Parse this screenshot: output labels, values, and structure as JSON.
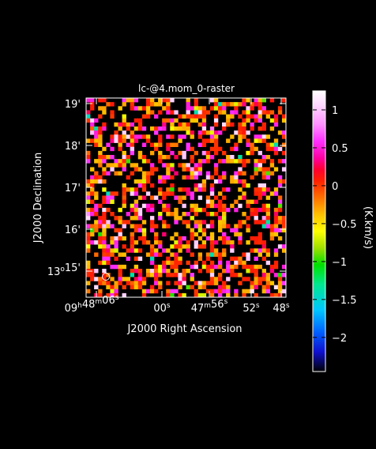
{
  "chart_data": {
    "type": "heatmap",
    "title": "lc-@4.mom_0-raster",
    "xlabel": "J2000 Right Ascension",
    "ylabel": "J2000 Declination",
    "x_ticks": [
      {
        "label_parts": [
          {
            "t": "09",
            "sup": false
          },
          {
            "t": "h",
            "sup": true
          },
          {
            "t": "48",
            "sup": false
          },
          {
            "t": "m",
            "sup": true
          },
          {
            "t": "06",
            "sup": false
          },
          {
            "t": "s",
            "sup": true
          }
        ]
      },
      {
        "label_parts": [
          {
            "t": "00",
            "sup": false
          },
          {
            "t": "s",
            "sup": true
          }
        ]
      },
      {
        "label_parts": [
          {
            "t": "47",
            "sup": false
          },
          {
            "t": "m",
            "sup": true
          },
          {
            "t": "56",
            "sup": false
          },
          {
            "t": "s",
            "sup": true
          }
        ]
      },
      {
        "label_parts": [
          {
            "t": "52",
            "sup": false
          },
          {
            "t": "s",
            "sup": true
          }
        ]
      },
      {
        "label_parts": [
          {
            "t": "48",
            "sup": false
          },
          {
            "t": "s",
            "sup": true
          }
        ]
      }
    ],
    "y_ticks": [
      {
        "label_parts": [
          {
            "t": "19",
            "sup": false
          },
          {
            "t": "'",
            "sup": false
          }
        ]
      },
      {
        "label_parts": [
          {
            "t": "18",
            "sup": false
          },
          {
            "t": "'",
            "sup": false
          }
        ]
      },
      {
        "label_parts": [
          {
            "t": "17",
            "sup": false
          },
          {
            "t": "'",
            "sup": false
          }
        ]
      },
      {
        "label_parts": [
          {
            "t": "16",
            "sup": false
          },
          {
            "t": "'",
            "sup": false
          }
        ]
      },
      {
        "label_parts": [
          {
            "t": "13",
            "sup": false
          },
          {
            "t": "o",
            "sup": true
          },
          {
            "t": "15'",
            "sup": false
          }
        ]
      }
    ],
    "grid": false,
    "legend": "right",
    "colorbar": {
      "label": "(K.km/s)",
      "range": [
        -2.45,
        1.25
      ],
      "ticks": [
        1,
        0.5,
        0,
        -0.5,
        -1,
        -1.5,
        -2
      ],
      "tick_labels": [
        "1",
        "0.5",
        "0",
        "−0.5",
        "−1",
        "−1.5",
        "−2"
      ],
      "colormap": [
        "#000000",
        "#1010d0",
        "#0060ff",
        "#00c8ff",
        "#00e890",
        "#00e000",
        "#a0e000",
        "#ffff00",
        "#ffc000",
        "#ff7000",
        "#ff2000",
        "#ff0030",
        "#ff00a0",
        "#ff30ff",
        "#ff90ff",
        "#ffd8ff",
        "#ffffff"
      ],
      "stops": [
        0,
        0.07,
        0.14,
        0.22,
        0.31,
        0.38,
        0.44,
        0.5,
        0.56,
        0.62,
        0.68,
        0.72,
        0.76,
        0.82,
        0.88,
        0.95,
        1
      ]
    },
    "grid_size": {
      "cols": 50,
      "rows": 49
    },
    "blank_fraction": 0.52,
    "value_distribution": {
      "levels": [
        0.05,
        -0.35,
        0.55,
        -0.15,
        1.05,
        0.3,
        -0.65,
        -0.95,
        -1.4,
        0.8
      ],
      "weights": [
        32,
        24,
        14,
        10,
        8,
        6,
        3,
        1.5,
        0.8,
        0.7
      ]
    },
    "beam": "circle-bottom-left"
  },
  "styles": {
    "background": "#000000",
    "axes_color": "#ffffff",
    "text_color": "#ffffff"
  }
}
